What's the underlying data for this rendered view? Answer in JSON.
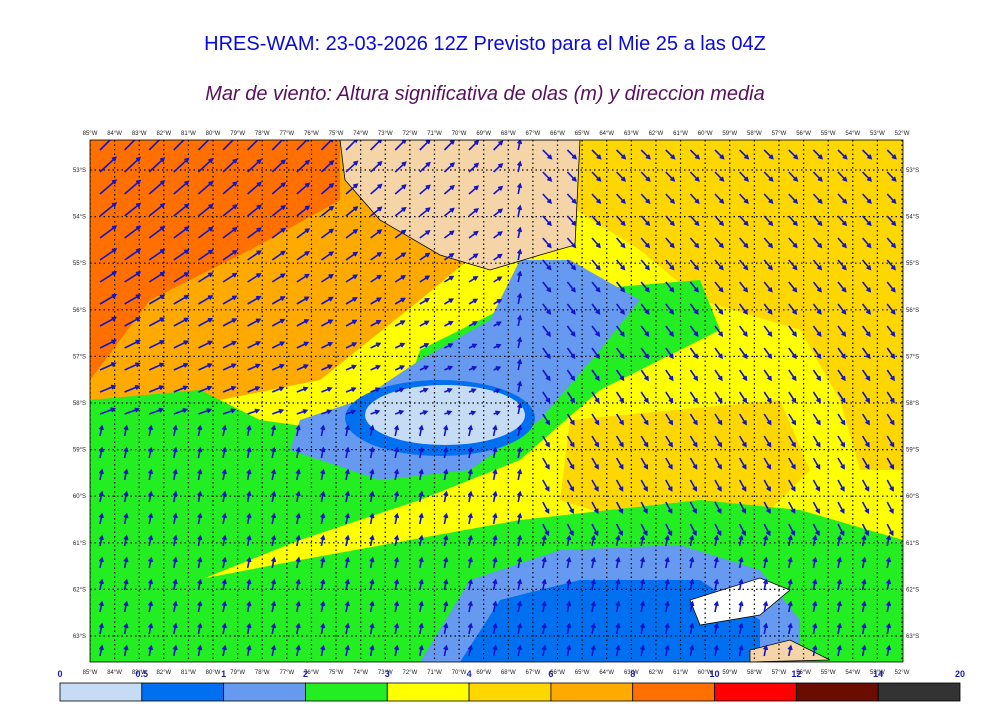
{
  "header": {
    "title": "HRES-WAM: 23-03-2026 12Z Previsto para el Mie 25 a las 04Z",
    "subtitle": "Mar de viento: Altura significativa de olas (m) y direccion media"
  },
  "map": {
    "longitudes": [
      "85°W",
      "84°W",
      "83°W",
      "82°W",
      "81°W",
      "80°W",
      "79°W",
      "78°W",
      "77°W",
      "76°W",
      "75°W",
      "74°W",
      "73°W",
      "72°W",
      "71°W",
      "70°W",
      "69°W",
      "68°W",
      "67°W",
      "66°W",
      "65°W",
      "64°W",
      "63°W",
      "62°W",
      "61°W",
      "60°W",
      "59°W",
      "58°W",
      "57°W",
      "56°W",
      "55°W",
      "54°W",
      "53°W",
      "52°W"
    ],
    "latitudes": [
      "53°S",
      "54°S",
      "55°S",
      "56°S",
      "57°S",
      "58°S",
      "59°S",
      "60°S",
      "61°S",
      "62°S",
      "63°S"
    ]
  },
  "colorbar": {
    "ticks": [
      0,
      0.5,
      1,
      2,
      3,
      4,
      6,
      8,
      10,
      12,
      14,
      20
    ],
    "colors": [
      "#c6dcf5",
      "#0070f0",
      "#6699f0",
      "#22ee22",
      "#ffff00",
      "#ffd700",
      "#ffaa00",
      "#ff7000",
      "#ff0000",
      "#6b0c00",
      "#333333"
    ]
  }
}
